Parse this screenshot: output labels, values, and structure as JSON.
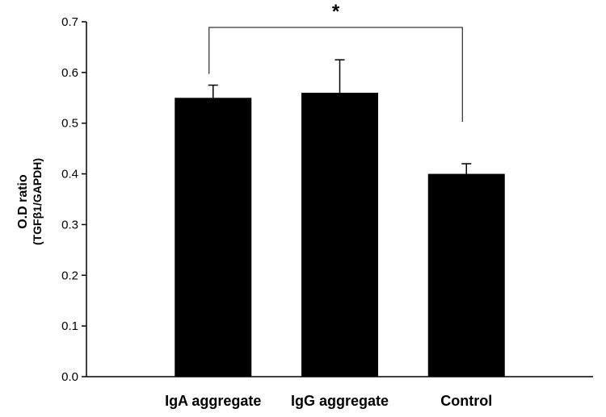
{
  "chart_data": {
    "type": "bar",
    "categories": [
      "IgA aggregate",
      "IgG aggregate",
      "Control"
    ],
    "values": [
      0.55,
      0.56,
      0.4
    ],
    "error_bars": [
      0.025,
      0.065,
      0.02
    ],
    "ylabel": "O.D ratio",
    "ylabel_sub": "(TGFβ1/GAPDH)",
    "xlabel": "",
    "ylim": [
      0.0,
      0.7
    ],
    "yticks": [
      "0.0",
      "0.1",
      "0.2",
      "0.3",
      "0.4",
      "0.5",
      "0.6",
      "0.7"
    ],
    "significance": {
      "from": "IgA aggregate",
      "to": "Control",
      "label": "*"
    },
    "bar_color": "#000000",
    "grid": false
  }
}
